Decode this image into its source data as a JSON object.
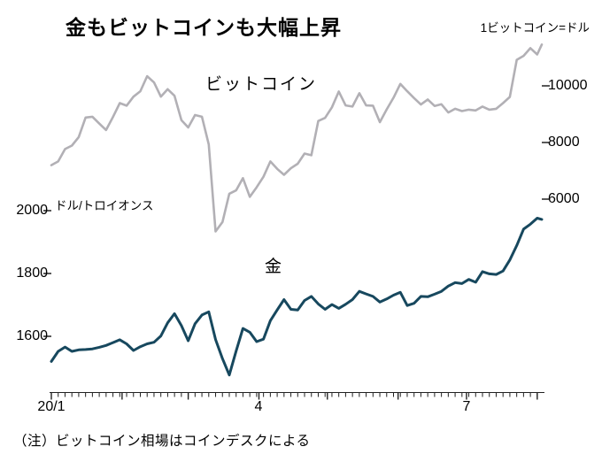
{
  "chart_data": {
    "type": "line",
    "title": "金もビットコインも大幅上昇",
    "note": "（注）ビットコイン相場はコインデスクによる",
    "x_unit": "days since 2020-01-01",
    "x_ticks": [
      {
        "pos": 0,
        "label": "20/1"
      },
      {
        "pos": 91,
        "label": "4"
      },
      {
        "pos": 182,
        "label": "7"
      }
    ],
    "month_tick_positions": [
      0,
      31,
      60,
      91,
      121,
      152,
      182,
      213
    ],
    "axes": {
      "left": {
        "label": "ドル/トロイオンス",
        "ticks": [
          1600,
          1800,
          2000
        ],
        "range": [
          1440,
          2010
        ],
        "series": "金"
      },
      "right": {
        "label": "1ビットコイン=ドル",
        "ticks": [
          6000,
          8000,
          10000
        ],
        "range": [
          4500,
          11800
        ],
        "series": "ビットコイン"
      }
    },
    "x": [
      0,
      3,
      6,
      9,
      12,
      15,
      18,
      21,
      24,
      27,
      30,
      33,
      36,
      39,
      42,
      45,
      48,
      51,
      54,
      57,
      60,
      63,
      66,
      69,
      72,
      75,
      78,
      81,
      84,
      87,
      90,
      93,
      96,
      99,
      102,
      105,
      108,
      111,
      114,
      117,
      120,
      123,
      126,
      129,
      132,
      135,
      138,
      141,
      144,
      147,
      150,
      153,
      156,
      159,
      162,
      165,
      168,
      171,
      174,
      177,
      180,
      183,
      186,
      189,
      192,
      195,
      198,
      201,
      204,
      207,
      210,
      213,
      215
    ],
    "series": [
      {
        "key": "bitcoin",
        "name": "ビットコイン",
        "axis": "right",
        "color": "#b2b0b5",
        "width": 2.6,
        "values": [
          7200,
          7330,
          7770,
          7890,
          8190,
          8880,
          8910,
          8670,
          8440,
          8900,
          9390,
          9300,
          9620,
          9810,
          10340,
          10120,
          9620,
          9880,
          9650,
          8790,
          8530,
          8970,
          8910,
          7930,
          4860,
          5190,
          6190,
          6310,
          6740,
          6080,
          6420,
          6790,
          7330,
          7070,
          6860,
          7090,
          7250,
          7610,
          7550,
          8760,
          8870,
          9240,
          9800,
          9310,
          9270,
          9740,
          9310,
          9300,
          8720,
          9170,
          9580,
          10070,
          9810,
          9570,
          9340,
          9520,
          9290,
          9350,
          9060,
          9190,
          9110,
          9160,
          9130,
          9270,
          9160,
          9190,
          9390,
          9610,
          10920,
          11060,
          11330,
          11110,
          11460
        ]
      },
      {
        "key": "gold",
        "name": "金",
        "axis": "left",
        "color": "#17485e",
        "width": 3,
        "values": [
          1520,
          1552,
          1566,
          1552,
          1557,
          1558,
          1560,
          1565,
          1571,
          1580,
          1589,
          1576,
          1555,
          1567,
          1576,
          1581,
          1601,
          1643,
          1672,
          1634,
          1586,
          1640,
          1668,
          1678,
          1590,
          1529,
          1477,
          1553,
          1625,
          1613,
          1583,
          1591,
          1650,
          1684,
          1717,
          1686,
          1684,
          1714,
          1727,
          1703,
          1686,
          1701,
          1689,
          1702,
          1717,
          1743,
          1735,
          1727,
          1709,
          1719,
          1731,
          1740,
          1698,
          1705,
          1727,
          1726,
          1734,
          1743,
          1760,
          1771,
          1768,
          1781,
          1772,
          1806,
          1799,
          1797,
          1808,
          1843,
          1889,
          1941,
          1957,
          1976,
          1972
        ]
      }
    ]
  },
  "colors": {
    "bitcoin_line": "#b2b0b5",
    "gold_line": "#17485e",
    "axis": "#222222",
    "background": "#ffffff",
    "text": "#000000"
  }
}
